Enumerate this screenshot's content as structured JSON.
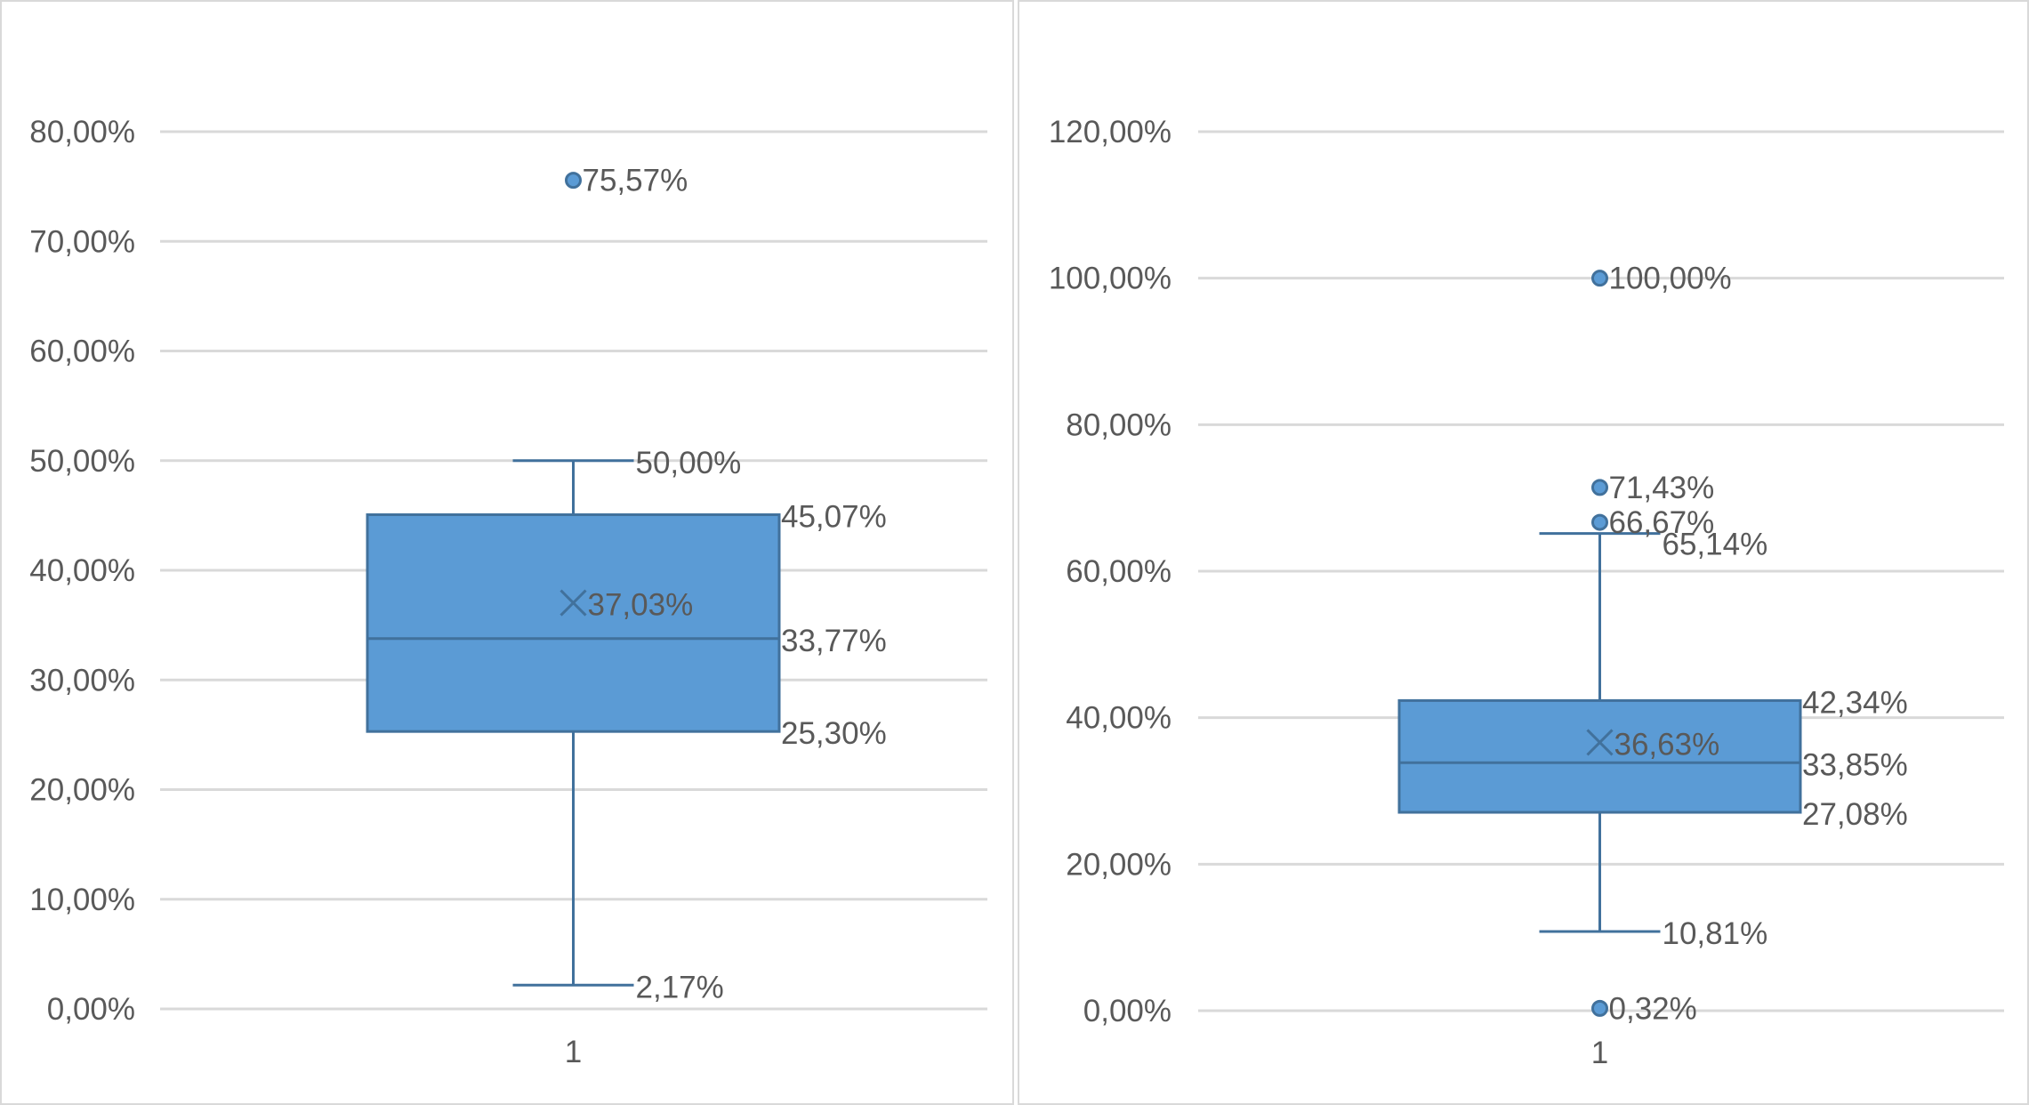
{
  "chart_data": [
    {
      "type": "box",
      "categories": [
        "1"
      ],
      "ylim": [
        0,
        80
      ],
      "y_ticks": [
        "0,00%",
        "10,00%",
        "20,00%",
        "30,00%",
        "40,00%",
        "50,00%",
        "60,00%",
        "70,00%",
        "80,00%"
      ],
      "grid": true,
      "box": {
        "min": 2.17,
        "q1": 25.3,
        "median": 33.77,
        "q3": 45.07,
        "max": 50.0,
        "mean": 37.03,
        "outliers": [
          75.57
        ],
        "labels": {
          "min": "2,17%",
          "q1": "25,30%",
          "median": "33,77%",
          "q3": "45,07%",
          "max": "50,00%",
          "mean": "37,03%",
          "outliers": [
            "75,57%"
          ]
        }
      },
      "colors": {
        "box_fill": "#5b9bd5",
        "box_stroke": "#41719c",
        "grid": "#d9d9d9",
        "text": "#595959"
      }
    },
    {
      "type": "box",
      "categories": [
        "1"
      ],
      "ylim": [
        0,
        120
      ],
      "y_ticks": [
        "0,00%",
        "20,00%",
        "40,00%",
        "60,00%",
        "80,00%",
        "100,00%",
        "120,00%"
      ],
      "grid": true,
      "box": {
        "min": 10.81,
        "q1": 27.08,
        "median": 33.85,
        "q3": 42.34,
        "max": 65.14,
        "mean": 36.63,
        "outliers": [
          100.0,
          71.43,
          66.67,
          0.32
        ],
        "labels": {
          "min": "10,81%",
          "q1": "27,08%",
          "median": "33,85%",
          "q3": "42,34%",
          "max": "65,14%",
          "mean": "36,63%",
          "outliers": [
            "100,00%",
            "71,43%",
            "66,67%",
            "0,32%"
          ]
        }
      },
      "colors": {
        "box_fill": "#5b9bd5",
        "box_stroke": "#41719c",
        "grid": "#d9d9d9",
        "text": "#595959"
      }
    }
  ]
}
